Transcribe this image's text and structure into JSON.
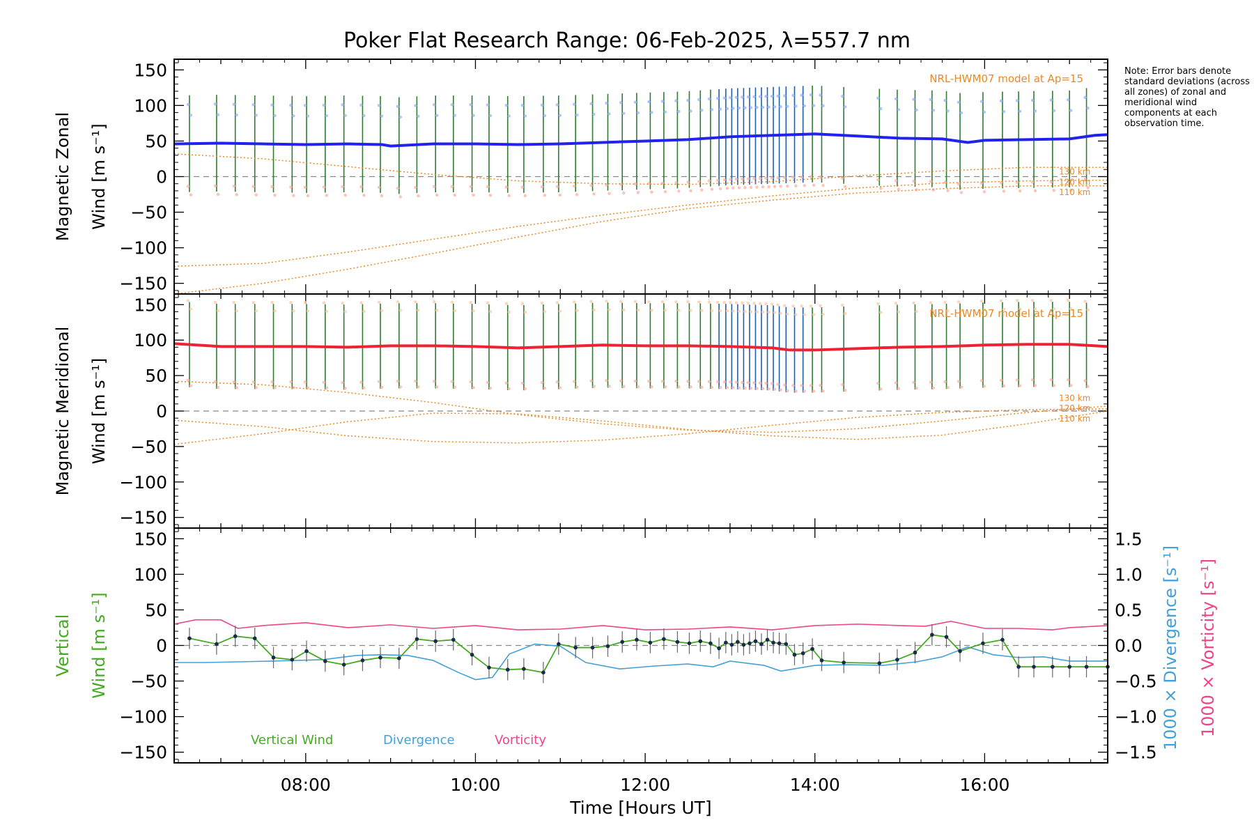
{
  "title": "Poker Flat Research Range: 06-Feb-2025, λ=557.7 nm",
  "note": "Note: Error bars denote standard deviations (across all zones) of zonal and meridional wind components at each observation time.",
  "xlabel": "Time [Hours UT]",
  "xtick_labels": [
    "08:00",
    "10:00",
    "12:00",
    "14:00",
    "16:00"
  ],
  "model_label": "NRL-HWM07 model at Ap=15",
  "altitude_labels": [
    "130 km",
    "120 km",
    "110 km"
  ],
  "panels": {
    "zonal": {
      "ylabel1": "Magnetic Zonal",
      "ylabel2": "Wind [m s⁻¹]"
    },
    "meridional": {
      "ylabel1": "Magnetic Meridional",
      "ylabel2": "Wind [m s⁻¹]"
    },
    "vertical": {
      "ylabel1": "Vertical",
      "ylabel2": "Wind [m s⁻¹]",
      "right_label_div": "1000 × Divergence [s⁻¹]",
      "right_label_vort": "1000 × Vorticity [s⁻¹]"
    }
  },
  "legend": [
    "Vertical Wind",
    "Divergence",
    "Vorticity"
  ],
  "colors": {
    "zonal": "#2222ee",
    "meridional": "#ee2233",
    "vertical": "#44aa22",
    "divergence": "#44a0d8",
    "vorticity": "#ee4488",
    "model": "#ee8822",
    "errbar_blue": "#1f5fa8",
    "errbar_green": "#2e7d32"
  },
  "chart_data": [
    {
      "type": "line",
      "title": "Poker Flat Research Range: 06-Feb-2025, λ=557.7 nm",
      "ylabel": "Magnetic Zonal Wind [m s⁻¹]",
      "xlim": [
        6.45,
        17.45
      ],
      "ylim": [
        -165,
        165
      ],
      "yticks": [
        150,
        100,
        50,
        0,
        -50,
        -100,
        -150
      ],
      "obs_times": [
        6.63,
        6.95,
        7.17,
        7.4,
        7.62,
        7.84,
        8.01,
        8.23,
        8.45,
        8.67,
        8.88,
        9.1,
        9.31,
        9.53,
        9.74,
        9.96,
        10.16,
        10.38,
        10.57,
        10.8,
        10.98,
        11.18,
        11.38,
        11.56,
        11.73,
        11.9,
        12.06,
        12.22,
        12.38,
        12.52,
        12.65,
        12.77,
        12.87,
        12.95,
        13.02,
        13.09,
        13.16,
        13.23,
        13.3,
        13.37,
        13.44,
        13.51,
        13.58,
        13.66,
        13.76,
        13.86,
        13.97,
        14.08,
        14.34,
        14.76,
        14.97,
        15.18,
        15.38,
        15.55,
        15.71,
        15.98,
        16.21,
        16.4,
        16.58,
        16.8,
        17.0,
        17.2
      ],
      "series": [
        {
          "name": "Magnetic Zonal Wind",
          "x": [
            6.45,
            7.0,
            7.5,
            8.0,
            8.5,
            8.9,
            9.0,
            9.5,
            10.0,
            10.5,
            11.0,
            11.5,
            12.0,
            12.5,
            13.0,
            13.5,
            14.0,
            14.5,
            15.0,
            15.5,
            15.8,
            16.0,
            16.5,
            17.0,
            17.3,
            17.45
          ],
          "y": [
            46,
            47,
            46,
            45,
            46,
            45,
            43,
            46,
            46,
            45,
            46,
            48,
            50,
            52,
            56,
            58,
            60,
            57,
            54,
            53,
            48,
            51,
            52,
            53,
            58,
            59
          ],
          "err": 68
        },
        {
          "name": "130 km",
          "x": [
            6.45,
            7.5,
            8.5,
            9.5,
            10.5,
            11.5,
            12.5,
            13.5,
            14.5,
            15.5,
            16.5,
            17.45
          ],
          "y": [
            32,
            25,
            14,
            3,
            -6,
            -10,
            -11,
            -7,
            1,
            8,
            13,
            13
          ]
        },
        {
          "name": "120 km",
          "x": [
            6.45,
            7.5,
            8.5,
            9.5,
            10.5,
            11.5,
            12.5,
            13.5,
            14.5,
            15.5,
            16.5,
            17.45
          ],
          "y": [
            -126,
            -122,
            -106,
            -88,
            -70,
            -54,
            -40,
            -27,
            -16,
            -9,
            -6,
            -5
          ]
        },
        {
          "name": "110 km",
          "x": [
            6.45,
            7.5,
            8.5,
            9.5,
            10.5,
            11.5,
            12.5,
            13.5,
            14.5,
            15.5,
            16.5,
            17.45
          ],
          "y": [
            -165,
            -150,
            -130,
            -108,
            -85,
            -63,
            -45,
            -33,
            -23,
            -17,
            -13,
            -13
          ]
        }
      ]
    },
    {
      "type": "line",
      "ylabel": "Magnetic Meridional Wind [m s⁻¹]",
      "xlim": [
        6.45,
        17.45
      ],
      "ylim": [
        -165,
        165
      ],
      "yticks": [
        150,
        100,
        50,
        0,
        -50,
        -100,
        -150
      ],
      "series": [
        {
          "name": "Magnetic Meridional Wind",
          "x": [
            6.45,
            7.0,
            7.5,
            8.0,
            8.5,
            9.0,
            9.5,
            10.0,
            10.5,
            11.0,
            11.5,
            12.0,
            12.5,
            13.0,
            13.5,
            13.7,
            14.0,
            14.5,
            15.0,
            15.5,
            16.0,
            16.5,
            17.0,
            17.45
          ],
          "y": [
            95,
            91,
            91,
            91,
            90,
            92,
            92,
            91,
            89,
            91,
            93,
            92,
            92,
            91,
            89,
            86,
            86,
            88,
            90,
            91,
            93,
            94,
            94,
            91
          ],
          "err": 60
        },
        {
          "name": "130 km",
          "x": [
            6.45,
            7.5,
            8.5,
            9.5,
            10.5,
            11.5,
            12.5,
            13.5,
            14.5,
            15.5,
            16.5,
            17.45
          ],
          "y": [
            42,
            37,
            26,
            12,
            -5,
            -18,
            -27,
            -30,
            -25,
            -14,
            -2,
            7
          ]
        },
        {
          "name": "120 km",
          "x": [
            6.45,
            7.5,
            8.5,
            9.5,
            10.5,
            11.5,
            12.5,
            13.5,
            14.5,
            15.5,
            16.5,
            17.45
          ],
          "y": [
            -47,
            -32,
            -15,
            -3,
            -4,
            -14,
            -26,
            -35,
            -40,
            -34,
            -18,
            0
          ]
        },
        {
          "name": "110 km",
          "x": [
            6.45,
            7.5,
            8.5,
            9.5,
            10.5,
            11.5,
            12.5,
            13.5,
            14.5,
            15.5,
            16.5,
            17.45
          ],
          "y": [
            -13,
            -22,
            -35,
            -43,
            -45,
            -41,
            -32,
            -20,
            -9,
            -2,
            2,
            3
          ]
        }
      ]
    },
    {
      "type": "line",
      "ylabel": "Vertical Wind [m s⁻¹]",
      "xlabel": "Time [Hours UT]",
      "xlim": [
        6.45,
        17.45
      ],
      "ylim": [
        -165,
        165
      ],
      "yticks": [
        150,
        100,
        50,
        0,
        -50,
        -100,
        -150
      ],
      "y2lim": [
        -1.65,
        1.65
      ],
      "y2ticks": [
        1.5,
        1.0,
        0.5,
        0.0,
        -0.5,
        -1.0,
        -1.5
      ],
      "series": [
        {
          "name": "Vertical Wind",
          "axis": "left",
          "x": [
            6.63,
            6.95,
            7.17,
            7.4,
            7.62,
            7.84,
            8.01,
            8.23,
            8.45,
            8.67,
            8.88,
            9.1,
            9.31,
            9.53,
            9.74,
            9.96,
            10.16,
            10.38,
            10.57,
            10.8,
            10.98,
            11.18,
            11.38,
            11.56,
            11.73,
            11.9,
            12.06,
            12.22,
            12.38,
            12.52,
            12.65,
            12.77,
            12.87,
            12.95,
            13.02,
            13.09,
            13.16,
            13.23,
            13.3,
            13.37,
            13.44,
            13.51,
            13.58,
            13.66,
            13.76,
            13.86,
            13.97,
            14.08,
            14.34,
            14.76,
            14.97,
            15.18,
            15.38,
            15.55,
            15.71,
            15.98,
            16.21,
            16.4,
            16.58,
            16.8,
            17.0,
            17.2,
            17.45
          ],
          "y": [
            10,
            2,
            13,
            10,
            -17,
            -20,
            -8,
            -22,
            -27,
            -21,
            -17,
            -18,
            9,
            6,
            8,
            -13,
            -31,
            -34,
            -33,
            -38,
            2,
            -3,
            -3,
            -1,
            5,
            8,
            4,
            9,
            5,
            3,
            6,
            3,
            -4,
            4,
            1,
            5,
            1,
            3,
            6,
            2,
            8,
            4,
            3,
            2,
            -13,
            -11,
            -5,
            -21,
            -24,
            -25,
            -20,
            -10,
            15,
            12,
            -8,
            3,
            8,
            -30,
            -30,
            -30,
            -30,
            -30,
            -30
          ],
          "err": 15
        },
        {
          "name": "Divergence",
          "axis": "right",
          "x": [
            6.45,
            6.8,
            7.2,
            7.6,
            8.2,
            8.6,
            8.9,
            9.2,
            9.5,
            9.8,
            10.0,
            10.2,
            10.4,
            10.7,
            11.0,
            11.3,
            11.7,
            12.1,
            12.5,
            12.8,
            13.0,
            13.4,
            13.6,
            14.0,
            14.4,
            14.8,
            15.2,
            15.5,
            15.8,
            16.1,
            16.4,
            16.7,
            17.0,
            17.45
          ],
          "y": [
            -0.24,
            -0.24,
            -0.23,
            -0.22,
            -0.2,
            -0.14,
            -0.13,
            -0.14,
            -0.21,
            -0.38,
            -0.48,
            -0.45,
            -0.12,
            0.02,
            -0.01,
            -0.24,
            -0.33,
            -0.29,
            -0.26,
            -0.3,
            -0.22,
            -0.28,
            -0.36,
            -0.28,
            -0.27,
            -0.28,
            -0.23,
            -0.16,
            -0.02,
            -0.13,
            -0.17,
            -0.16,
            -0.22,
            -0.22
          ]
        },
        {
          "name": "Vorticity",
          "axis": "right",
          "x": [
            6.45,
            6.7,
            7.0,
            7.2,
            7.5,
            8.0,
            8.5,
            9.0,
            9.5,
            10.0,
            10.5,
            11.0,
            11.5,
            12.0,
            12.5,
            13.0,
            13.5,
            14.0,
            14.5,
            15.0,
            15.3,
            15.6,
            16.0,
            16.4,
            16.8,
            17.0,
            17.45
          ],
          "y": [
            0.3,
            0.36,
            0.36,
            0.24,
            0.28,
            0.32,
            0.25,
            0.29,
            0.24,
            0.28,
            0.22,
            0.23,
            0.28,
            0.22,
            0.23,
            0.26,
            0.22,
            0.28,
            0.3,
            0.28,
            0.27,
            0.34,
            0.24,
            0.24,
            0.22,
            0.25,
            0.28
          ]
        }
      ]
    }
  ]
}
